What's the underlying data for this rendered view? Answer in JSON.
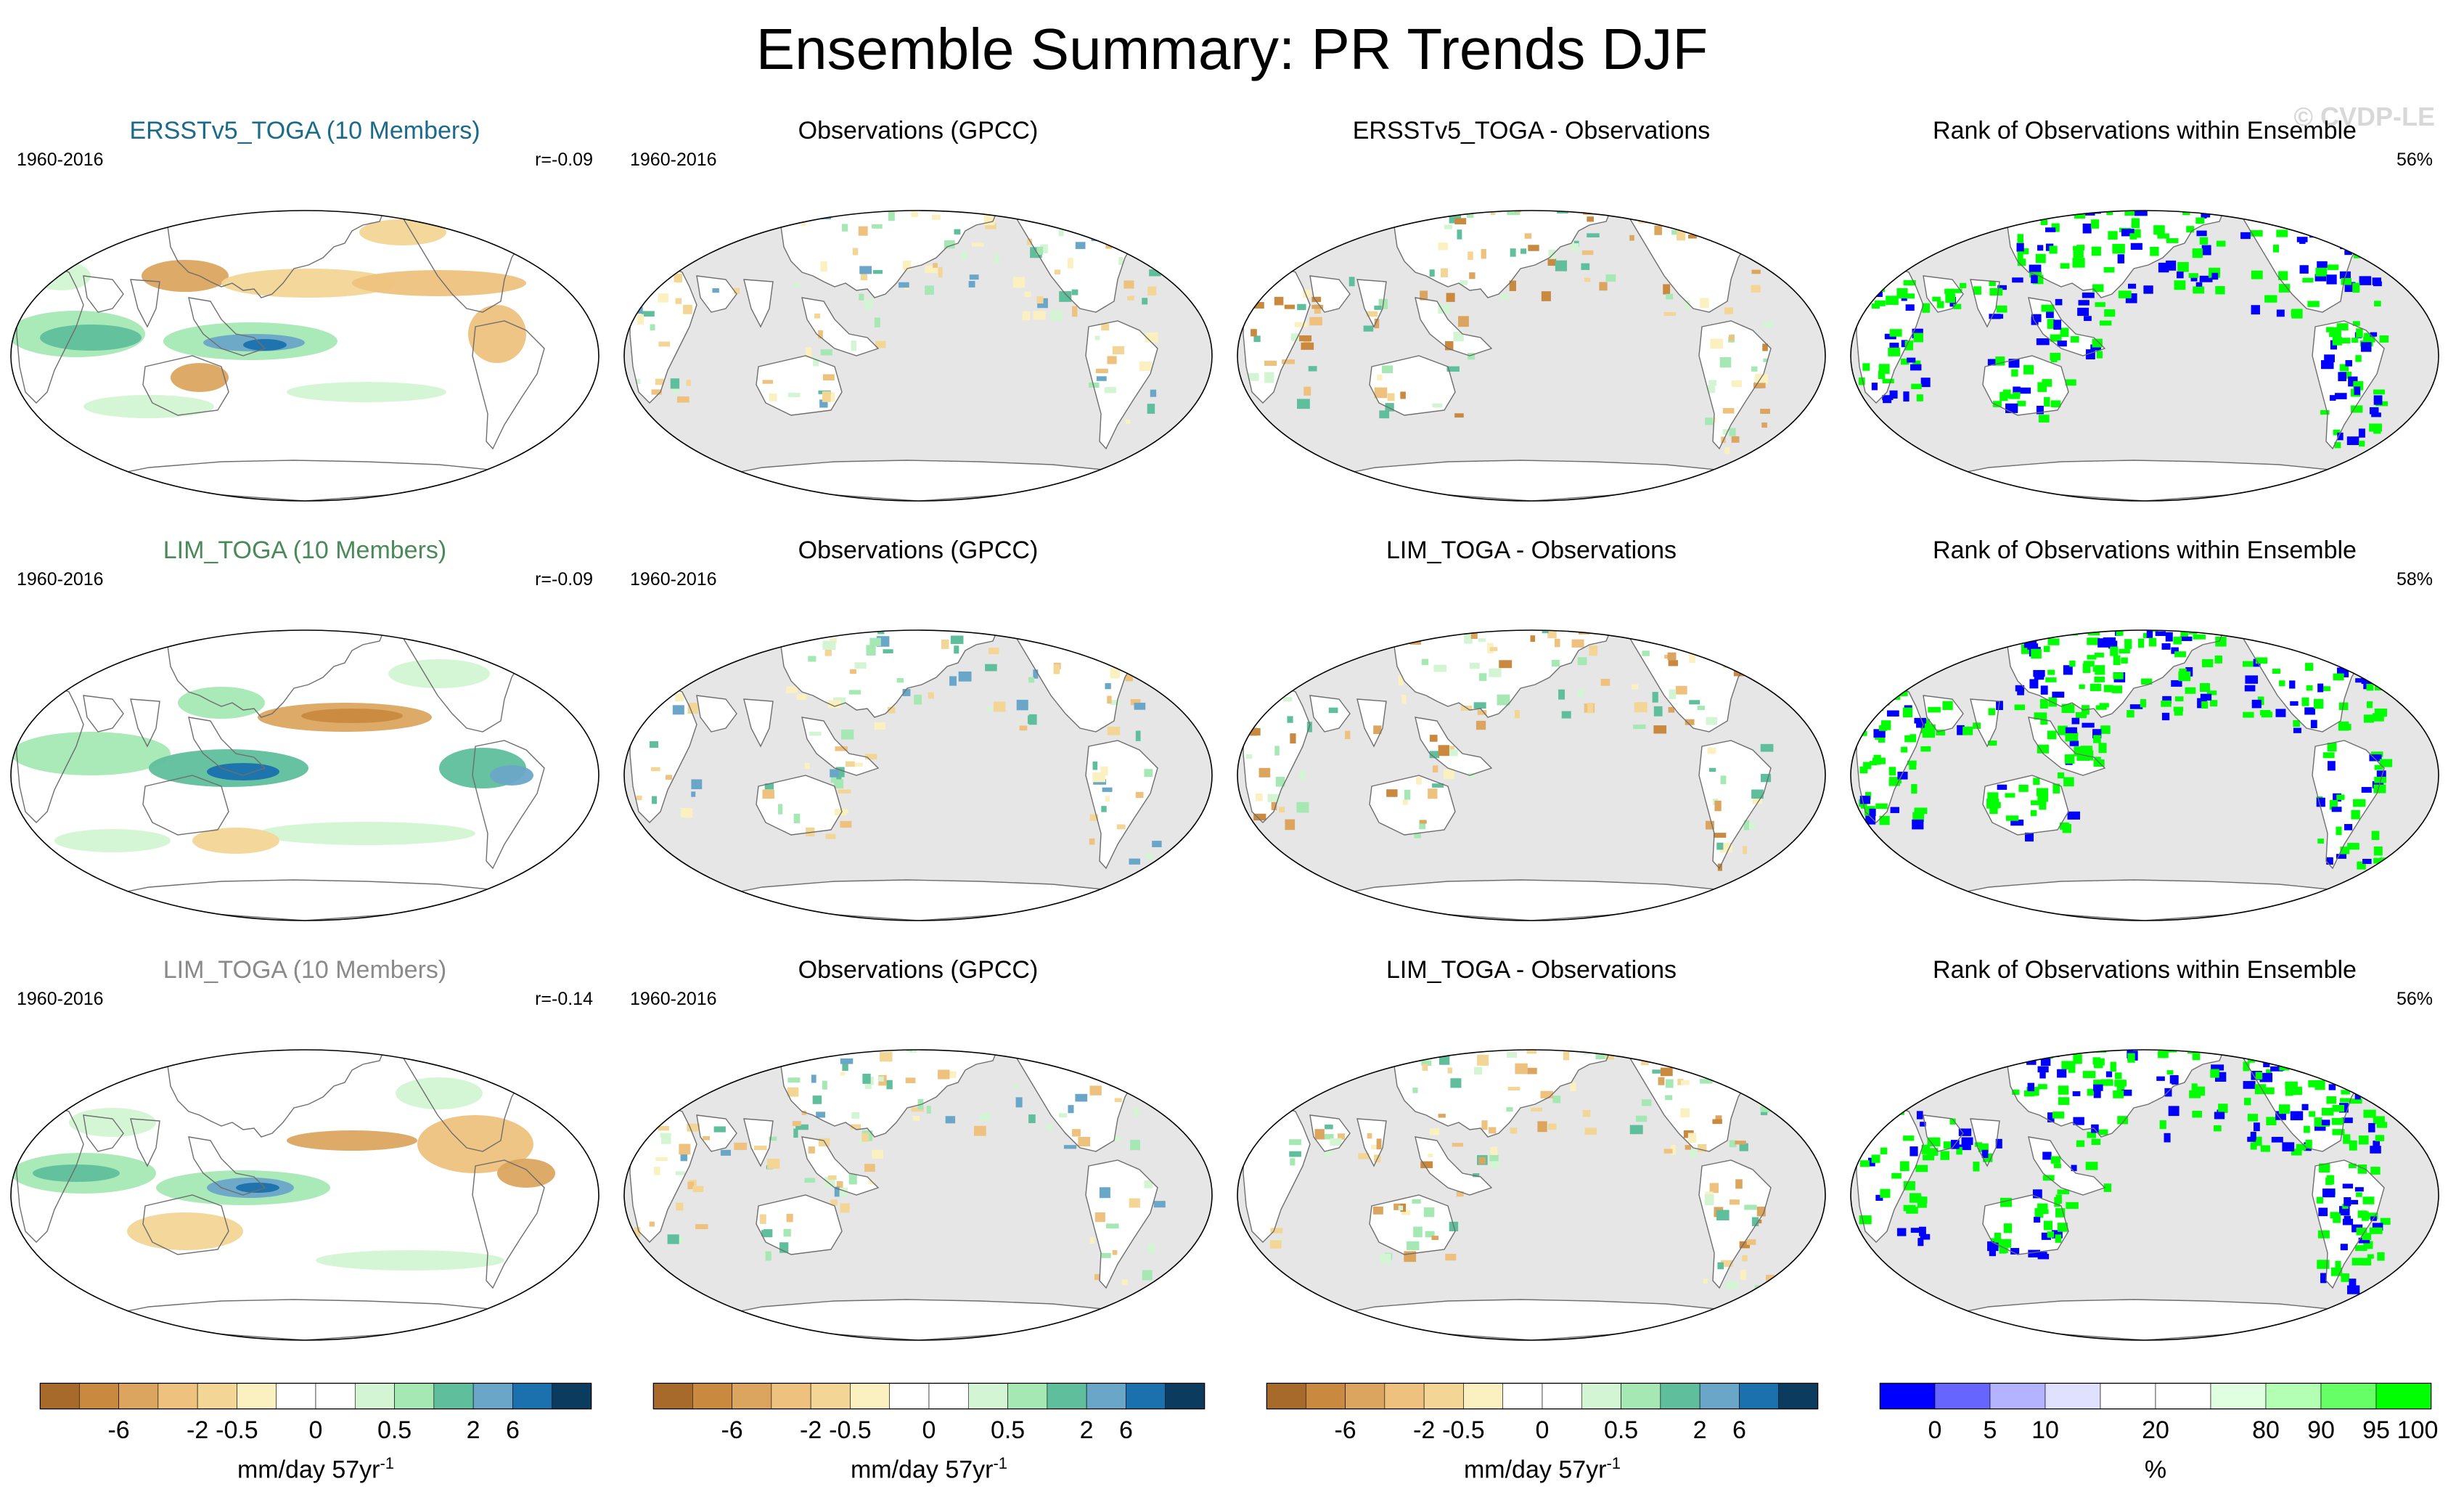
{
  "title": "Ensemble Summary: PR Trends DJF",
  "watermark": "© CVDP-LE",
  "rows": [
    {
      "panels": [
        {
          "title": "ERSSTv5_TOGA (10 Members)",
          "title_color": "#1a6a8c",
          "left_label": "1960-2016",
          "right_label": "r=-0.09",
          "kind": "model"
        },
        {
          "title": "Observations (GPCC)",
          "left_label": "1960-2016",
          "right_label": "",
          "kind": "obs"
        },
        {
          "title": "ERSSTv5_TOGA - Observations",
          "left_label": "",
          "right_label": "",
          "kind": "diff"
        },
        {
          "title": "Rank of Observations within Ensemble",
          "left_label": "",
          "right_label": "56%",
          "kind": "rank"
        }
      ]
    },
    {
      "panels": [
        {
          "title": "LIM_TOGA (10 Members)",
          "title_color": "#4a8a5a",
          "left_label": "1960-2016",
          "right_label": "r=-0.09",
          "kind": "model"
        },
        {
          "title": "Observations (GPCC)",
          "left_label": "1960-2016",
          "right_label": "",
          "kind": "obs"
        },
        {
          "title": "LIM_TOGA - Observations",
          "left_label": "",
          "right_label": "",
          "kind": "diff"
        },
        {
          "title": "Rank of Observations within Ensemble",
          "left_label": "",
          "right_label": "58%",
          "kind": "rank"
        }
      ]
    },
    {
      "panels": [
        {
          "title": "LIM_TOGA (10 Members)",
          "title_color": "#8a8a8a",
          "left_label": "1960-2016",
          "right_label": "r=-0.14",
          "kind": "model"
        },
        {
          "title": "Observations (GPCC)",
          "left_label": "1960-2016",
          "right_label": "",
          "kind": "obs"
        },
        {
          "title": "LIM_TOGA - Observations",
          "left_label": "",
          "right_label": "",
          "kind": "diff"
        },
        {
          "title": "Rank of Observations within Ensemble",
          "left_label": "",
          "right_label": "56%",
          "kind": "rank"
        }
      ]
    }
  ],
  "colorbars": [
    {
      "ticks": [
        "-6",
        "-2",
        "-0.5",
        "0",
        "0.5",
        "2",
        "6"
      ],
      "label": "mm/day 57yr",
      "label_sup": "-1",
      "colors": [
        "#a86a2a",
        "#c98a40",
        "#dba560",
        "#eec27e",
        "#f3d696",
        "#fbf0bf",
        "#ffffff",
        "#ffffff",
        "#d3f5d3",
        "#a5e8b4",
        "#5fbf9c",
        "#6aa6c8",
        "#1a71ae",
        "#0b3c5f"
      ]
    },
    {
      "ticks": [
        "-6",
        "-2",
        "-0.5",
        "0",
        "0.5",
        "2",
        "6"
      ],
      "label": "mm/day 57yr",
      "label_sup": "-1",
      "colors": [
        "#a86a2a",
        "#c98a40",
        "#dba560",
        "#eec27e",
        "#f3d696",
        "#fbf0bf",
        "#ffffff",
        "#ffffff",
        "#d3f5d3",
        "#a5e8b4",
        "#5fbf9c",
        "#6aa6c8",
        "#1a71ae",
        "#0b3c5f"
      ]
    },
    {
      "ticks": [
        "-6",
        "-2",
        "-0.5",
        "0",
        "0.5",
        "2",
        "6"
      ],
      "label": "mm/day 57yr",
      "label_sup": "-1",
      "colors": [
        "#a86a2a",
        "#c98a40",
        "#dba560",
        "#eec27e",
        "#f3d696",
        "#fbf0bf",
        "#ffffff",
        "#ffffff",
        "#d3f5d3",
        "#a5e8b4",
        "#5fbf9c",
        "#6aa6c8",
        "#1a71ae",
        "#0b3c5f"
      ]
    },
    {
      "ticks": [
        "0",
        "5",
        "10",
        "20",
        "80",
        "90",
        "95",
        "100"
      ],
      "label": "%",
      "label_sup": "",
      "colors": [
        "#0000ff",
        "#6666ff",
        "#b3b3ff",
        "#e0e0ff",
        "#ffffff",
        "#ffffff",
        "#e0ffe0",
        "#b3ffb3",
        "#66ff66",
        "#00ff00"
      ]
    }
  ]
}
